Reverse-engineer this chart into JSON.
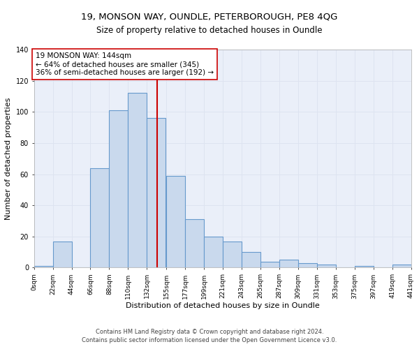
{
  "title": "19, MONSON WAY, OUNDLE, PETERBOROUGH, PE8 4QG",
  "subtitle": "Size of property relative to detached houses in Oundle",
  "xlabel": "Distribution of detached houses by size in Oundle",
  "ylabel": "Number of detached properties",
  "bin_edges": [
    0,
    22,
    44,
    66,
    88,
    110,
    132,
    155,
    177,
    199,
    221,
    243,
    265,
    287,
    309,
    331,
    353,
    375,
    397,
    419,
    441
  ],
  "bar_heights": [
    1,
    17,
    0,
    64,
    101,
    112,
    96,
    59,
    31,
    20,
    17,
    10,
    4,
    5,
    3,
    2,
    0,
    1,
    0,
    2
  ],
  "bar_facecolor": "#c9d9ed",
  "bar_edgecolor": "#6699cc",
  "bar_linewidth": 0.8,
  "vline_x": 144,
  "vline_color": "#cc0000",
  "vline_linewidth": 1.5,
  "annotation_text": "19 MONSON WAY: 144sqm\n← 64% of detached houses are smaller (345)\n36% of semi-detached houses are larger (192) →",
  "annotation_box_facecolor": "white",
  "annotation_box_edgecolor": "#cc0000",
  "ylim": [
    0,
    140
  ],
  "xlim": [
    0,
    441
  ],
  "tick_labels": [
    "0sqm",
    "22sqm",
    "44sqm",
    "66sqm",
    "88sqm",
    "110sqm",
    "132sqm",
    "155sqm",
    "177sqm",
    "199sqm",
    "221sqm",
    "243sqm",
    "265sqm",
    "287sqm",
    "309sqm",
    "331sqm",
    "353sqm",
    "375sqm",
    "397sqm",
    "419sqm",
    "441sqm"
  ],
  "tick_positions": [
    0,
    22,
    44,
    66,
    88,
    110,
    132,
    155,
    177,
    199,
    221,
    243,
    265,
    287,
    309,
    331,
    353,
    375,
    397,
    419,
    441
  ],
  "grid_color": "#dde3f0",
  "background_color": "#eaeff9",
  "footer_line1": "Contains HM Land Registry data © Crown copyright and database right 2024.",
  "footer_line2": "Contains public sector information licensed under the Open Government Licence v3.0.",
  "title_fontsize": 9.5,
  "subtitle_fontsize": 8.5,
  "xlabel_fontsize": 8,
  "ylabel_fontsize": 8,
  "tick_fontsize": 6.5,
  "footer_fontsize": 6,
  "annotation_fontsize": 7.5
}
